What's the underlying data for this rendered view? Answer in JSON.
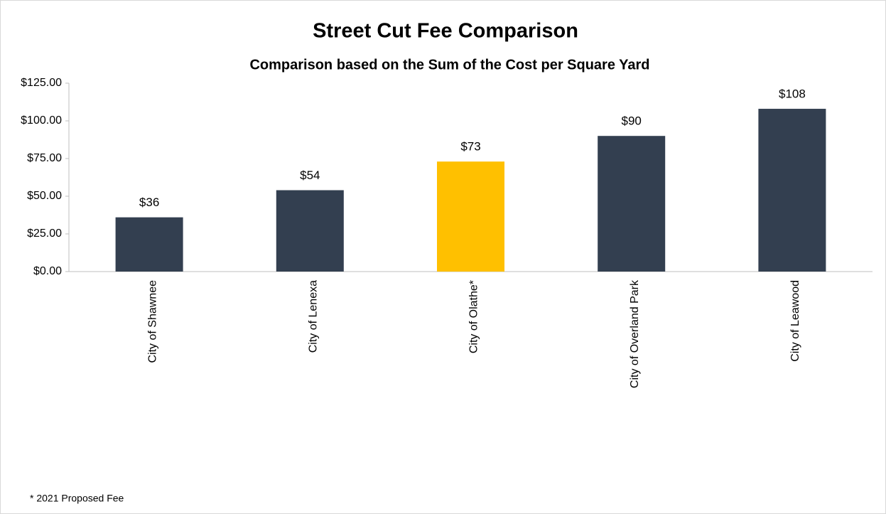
{
  "chart_data": {
    "type": "bar",
    "title": "Street Cut Fee Comparison",
    "subtitle": "Comparison based on the Sum of the Cost per Square Yard",
    "categories": [
      "City of Shawnee",
      "City of Lenexa",
      "City of Olathe*",
      "City of Overland Park",
      "City of Leawood"
    ],
    "values": [
      36,
      54,
      73,
      90,
      108
    ],
    "value_labels": [
      "$36",
      "$54",
      "$73",
      "$90",
      "$108"
    ],
    "colors": [
      "#333f50",
      "#333f50",
      "#ffc000",
      "#333f50",
      "#333f50"
    ],
    "ylim": [
      0,
      125
    ],
    "yticks": [
      {
        "value": 0,
        "label": "$0.00"
      },
      {
        "value": 25,
        "label": "$25.00"
      },
      {
        "value": 50,
        "label": "$50.00"
      },
      {
        "value": 75,
        "label": "$75.00"
      },
      {
        "value": 100,
        "label": "$100.00"
      },
      {
        "value": 125,
        "label": "$125.00"
      }
    ],
    "grid": false,
    "footnote": "* 2021 Proposed Fee"
  }
}
